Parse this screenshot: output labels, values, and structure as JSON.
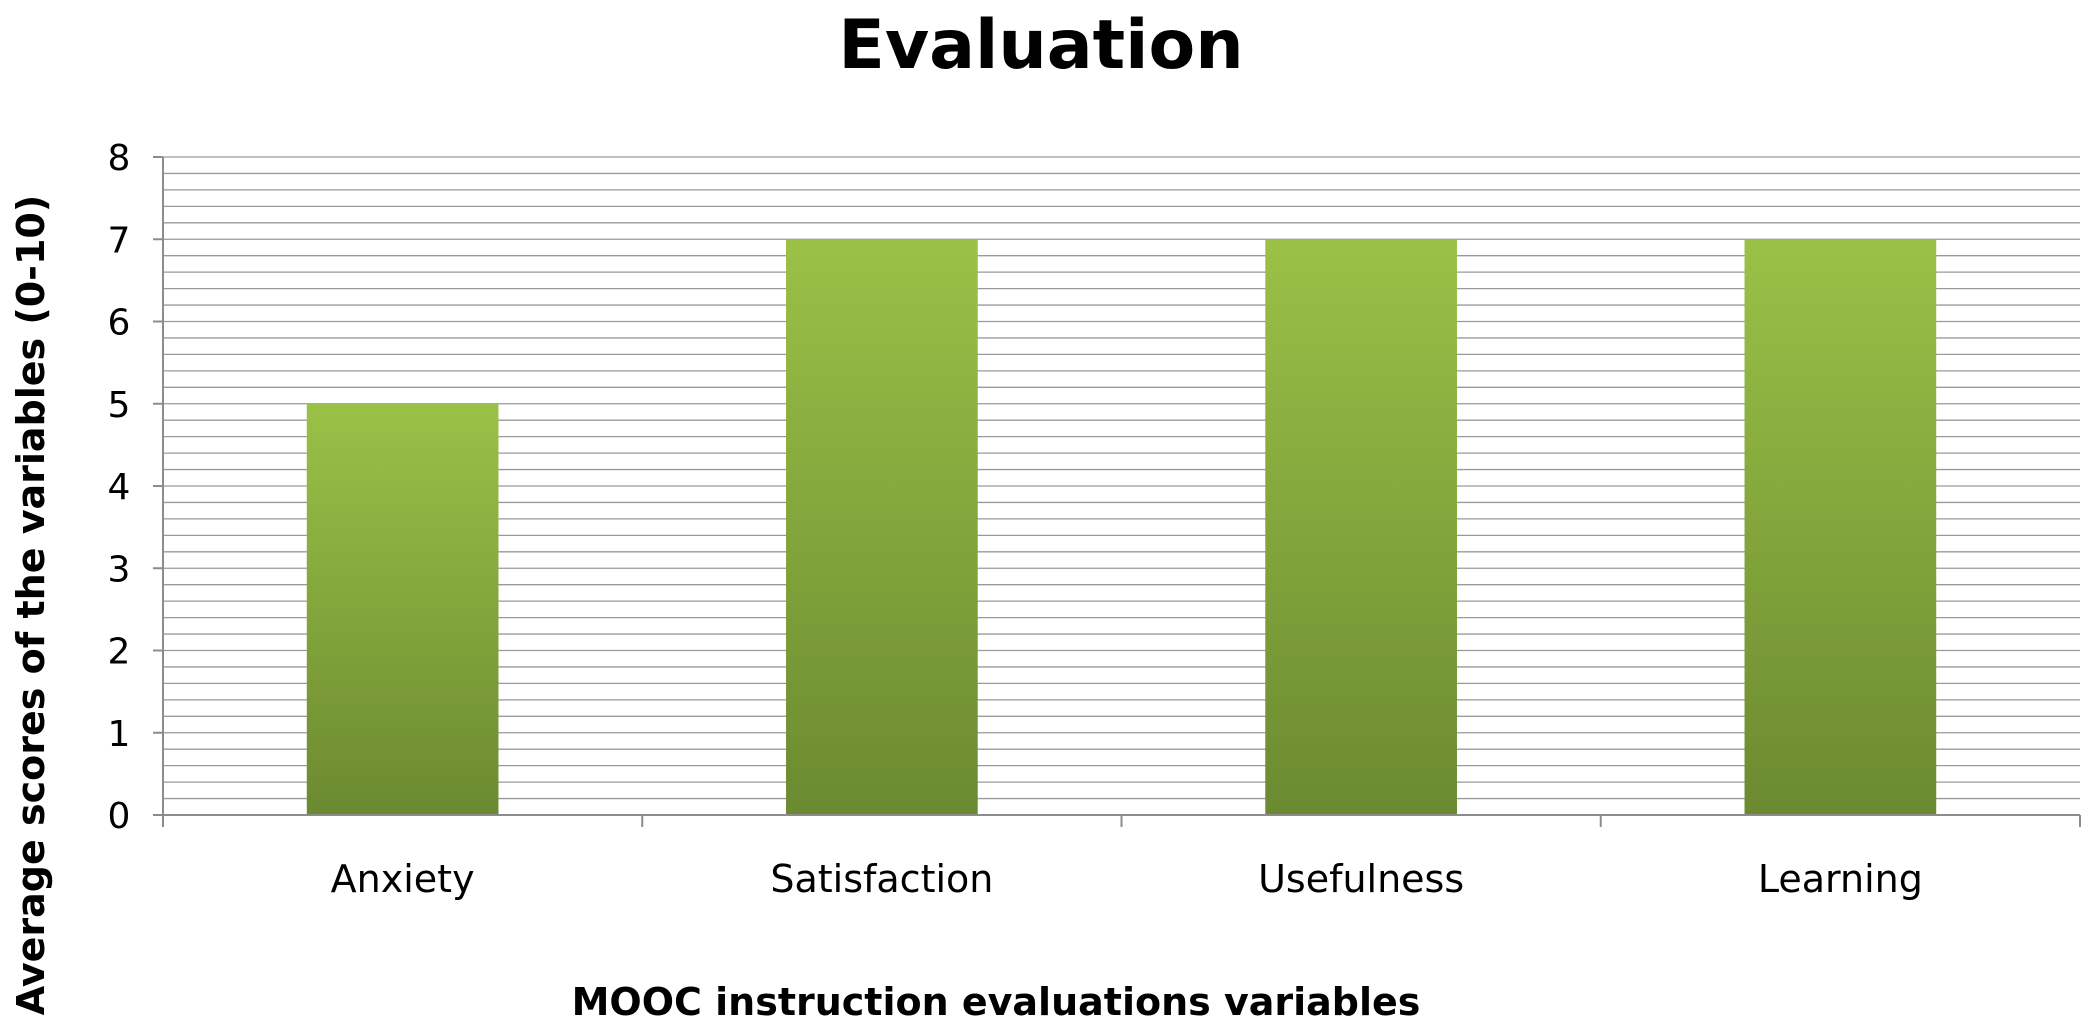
{
  "chart_data": {
    "type": "bar",
    "title": "Evaluation",
    "xlabel": "MOOC instruction evaluations variables",
    "ylabel": "Average scores of the variables (0-10)",
    "categories": [
      "Anxiety",
      "Satisfaction",
      "Usefulness",
      "Learning"
    ],
    "values": [
      5,
      7,
      7,
      7
    ],
    "ylim": [
      0,
      8
    ],
    "yticks": [
      "0",
      "1",
      "2",
      "3",
      "4",
      "5",
      "6",
      "7",
      "8"
    ],
    "grid": true,
    "legend": "none",
    "colors": {
      "bar_top": "#9bc147",
      "bar_bottom": "#6b8a30",
      "gridline": "#9a9a9a",
      "axis": "#8c8c8c"
    }
  }
}
